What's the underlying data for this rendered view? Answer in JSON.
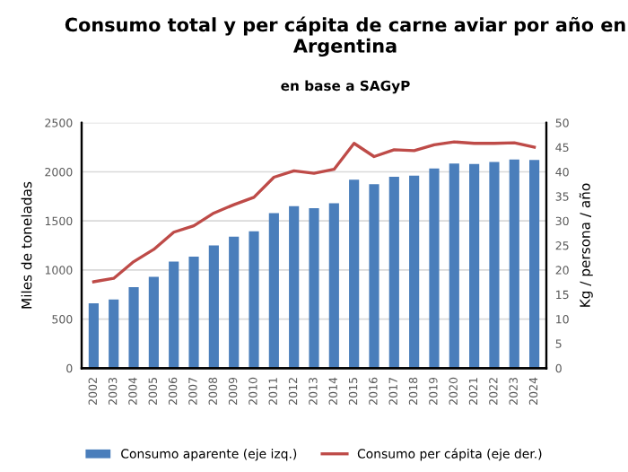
{
  "chart_data": {
    "type": "bar",
    "title": "Consumo total y per cápita de carne aviar por año en Argentina",
    "subtitle": "en base a SAGyP",
    "categories": [
      "2002",
      "2003",
      "2004",
      "2005",
      "2006",
      "2007",
      "2008",
      "2009",
      "2010",
      "2011",
      "2012",
      "2013",
      "2014",
      "2015",
      "2016",
      "2017",
      "2018",
      "2019",
      "2020",
      "2021",
      "2022",
      "2023",
      "2024"
    ],
    "series": [
      {
        "name": "Consumo aparente (eje izq.)",
        "color": "#4a7ebb",
        "values": [
          660,
          700,
          825,
          930,
          1085,
          1135,
          1250,
          1340,
          1395,
          1580,
          1650,
          1630,
          1680,
          1920,
          1875,
          1950,
          1960,
          2035,
          2085,
          2080,
          2100,
          2125,
          2120
        ]
      },
      {
        "name": "Consumo per cápita (eje der.)",
        "type": "line",
        "axis": "y2",
        "color": "#be4b48",
        "values": [
          17.6,
          18.3,
          21.7,
          24.2,
          27.7,
          29.0,
          31.6,
          33.3,
          34.8,
          38.9,
          40.2,
          39.7,
          40.5,
          45.8,
          43.1,
          44.5,
          44.3,
          45.5,
          46.1,
          45.8,
          45.8,
          45.9,
          45.0
        ]
      }
    ],
    "ylabel": "Miles de toneladas",
    "y2label": "Kg / persona / año",
    "ylim": [
      0,
      2500
    ],
    "yticks": [
      0,
      500,
      1000,
      1500,
      2000,
      2500
    ],
    "y2lim": [
      0,
      50
    ],
    "y2ticks": [
      0,
      5,
      10,
      15,
      20,
      25,
      30,
      35,
      40,
      45,
      50
    ],
    "grid": "y",
    "legend": "bottom"
  }
}
